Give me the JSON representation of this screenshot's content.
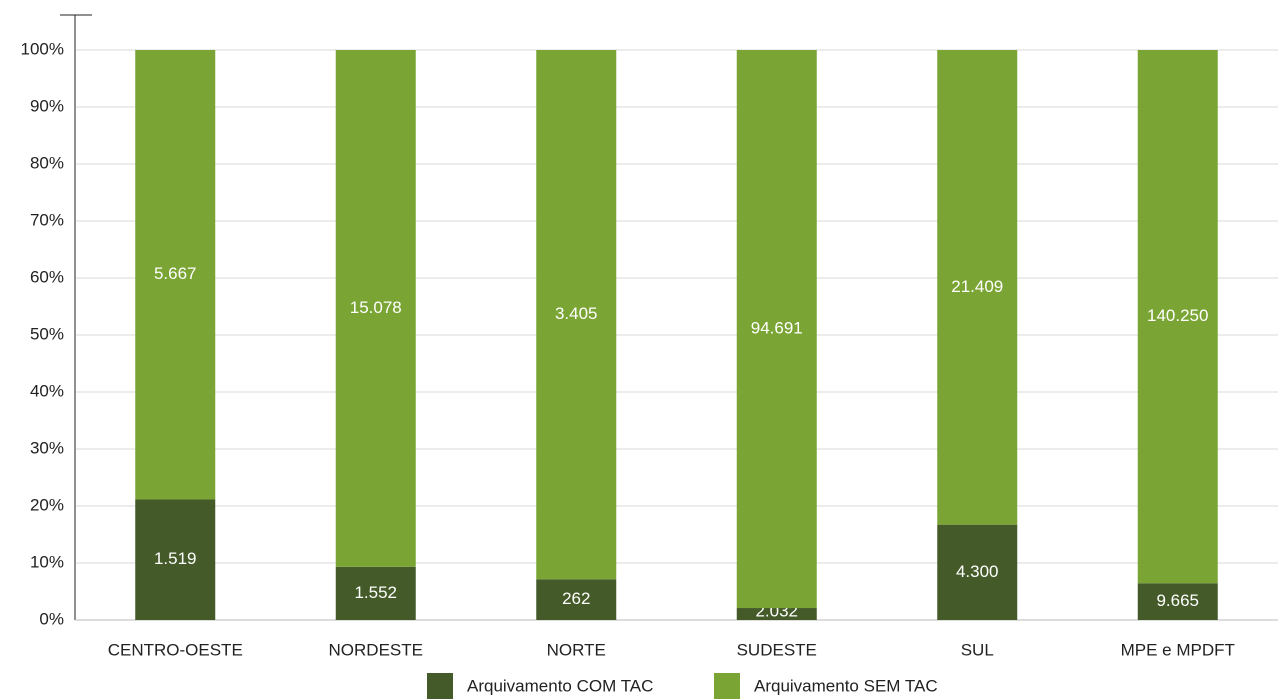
{
  "chart_data": {
    "type": "bar",
    "stacked": "percent",
    "categories": [
      "CENTRO-OESTE",
      "NORDESTE",
      "NORTE",
      "SUDESTE",
      "SUL",
      "MPE e MPDFT"
    ],
    "series": [
      {
        "name": "Arquivamento COM TAC",
        "color": "#445b29",
        "values": [
          1519,
          1552,
          262,
          2032,
          4300,
          9665
        ],
        "value_labels": [
          "1.519",
          "1.552",
          "262",
          "2.032",
          "4.300",
          "9.665"
        ]
      },
      {
        "name": "Arquivamento SEM TAC",
        "color": "#7aa535",
        "values": [
          5667,
          15078,
          3405,
          94691,
          21409,
          140250
        ],
        "value_labels": [
          "5.667",
          "15.078",
          "3.405",
          "94.691",
          "21.409",
          "140.250"
        ]
      }
    ],
    "ylim": [
      0,
      100
    ],
    "yticks": [
      {
        "value": 0,
        "label": "0%"
      },
      {
        "value": 10,
        "label": "10%"
      },
      {
        "value": 20,
        "label": "20%"
      },
      {
        "value": 30,
        "label": "30%"
      },
      {
        "value": 40,
        "label": "40%"
      },
      {
        "value": 50,
        "label": "50%"
      },
      {
        "value": 60,
        "label": "60%"
      },
      {
        "value": 70,
        "label": "70%"
      },
      {
        "value": 80,
        "label": "80%"
      },
      {
        "value": 90,
        "label": "90%"
      },
      {
        "value": 100,
        "label": "100%"
      }
    ],
    "grid": true,
    "legend": "bottom"
  }
}
